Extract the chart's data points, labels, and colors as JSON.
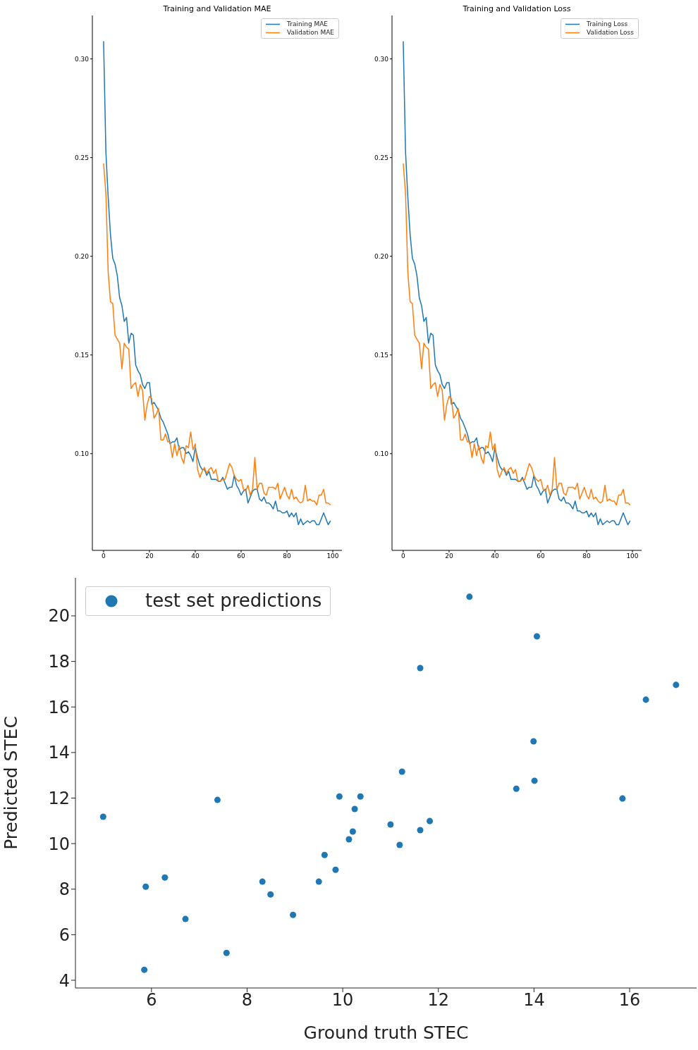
{
  "chart_data": [
    {
      "type": "line",
      "title": "Training and Validation MAE",
      "legend": "top right",
      "marker": "none",
      "line_style": "solid",
      "x": [
        0,
        1,
        2,
        3,
        4,
        5,
        6,
        7,
        8,
        9,
        10,
        11,
        12,
        13,
        14,
        15,
        16,
        17,
        18,
        19,
        20,
        21,
        22,
        23,
        24,
        25,
        26,
        27,
        28,
        29,
        30,
        31,
        32,
        33,
        34,
        35,
        36,
        37,
        38,
        39,
        40,
        41,
        42,
        43,
        44,
        45,
        46,
        47,
        48,
        49,
        50,
        51,
        52,
        53,
        54,
        55,
        56,
        57,
        58,
        59,
        60,
        61,
        62,
        63,
        64,
        65,
        66,
        67,
        68,
        69,
        70,
        71,
        72,
        73,
        74,
        75,
        76,
        77,
        78,
        79,
        80,
        81,
        82,
        83,
        84,
        85,
        86,
        87,
        88,
        89,
        90,
        91,
        92,
        93,
        94,
        95,
        96,
        97,
        98,
        99
      ],
      "xlim": [
        -4.9,
        104
      ],
      "xticks": [
        0,
        20,
        40,
        60,
        80,
        100
      ],
      "ylim": [
        0.051,
        0.322
      ],
      "yticks": [
        {
          "value": 0.1,
          "label": "0.10"
        },
        {
          "value": 0.15,
          "label": "0.15"
        },
        {
          "value": 0.2,
          "label": "0.20"
        },
        {
          "value": 0.25,
          "label": "0.25"
        },
        {
          "value": 0.3,
          "label": "0.30"
        }
      ],
      "series": [
        {
          "name": "Training MAE",
          "color": "#1f77b4",
          "values": [
            0.309,
            0.253,
            0.23,
            0.211,
            0.199,
            0.196,
            0.19,
            0.179,
            0.175,
            0.167,
            0.169,
            0.156,
            0.161,
            0.16,
            0.145,
            0.142,
            0.14,
            0.135,
            0.133,
            0.136,
            0.136,
            0.125,
            0.126,
            0.124,
            0.122,
            0.118,
            0.116,
            0.113,
            0.11,
            0.105,
            0.106,
            0.106,
            0.108,
            0.102,
            0.103,
            0.103,
            0.1,
            0.101,
            0.099,
            0.096,
            0.103,
            0.098,
            0.094,
            0.092,
            0.092,
            0.089,
            0.091,
            0.087,
            0.087,
            0.087,
            0.086,
            0.086,
            0.088,
            0.085,
            0.082,
            0.083,
            0.083,
            0.089,
            0.084,
            0.082,
            0.079,
            0.081,
            0.082,
            0.075,
            0.078,
            0.081,
            0.082,
            0.082,
            0.077,
            0.076,
            0.078,
            0.075,
            0.075,
            0.074,
            0.072,
            0.076,
            0.071,
            0.071,
            0.07,
            0.07,
            0.071,
            0.068,
            0.07,
            0.068,
            0.07,
            0.064,
            0.067,
            0.064,
            0.065,
            0.066,
            0.065,
            0.066,
            0.066,
            0.064,
            0.064,
            0.067,
            0.07,
            0.067,
            0.064,
            0.066
          ]
        },
        {
          "name": "Validation MAE",
          "color": "#ff7f0e",
          "values": [
            0.247,
            0.232,
            0.192,
            0.177,
            0.176,
            0.16,
            0.158,
            0.156,
            0.143,
            0.156,
            0.154,
            0.153,
            0.133,
            0.135,
            0.136,
            0.129,
            0.135,
            0.132,
            0.117,
            0.125,
            0.129,
            0.128,
            0.118,
            0.12,
            0.123,
            0.107,
            0.107,
            0.11,
            0.106,
            0.106,
            0.098,
            0.105,
            0.099,
            0.104,
            0.098,
            0.095,
            0.104,
            0.103,
            0.111,
            0.102,
            0.105,
            0.092,
            0.088,
            0.091,
            0.093,
            0.09,
            0.092,
            0.093,
            0.09,
            0.092,
            0.086,
            0.086,
            0.087,
            0.087,
            0.091,
            0.095,
            0.093,
            0.089,
            0.087,
            0.086,
            0.087,
            0.082,
            0.081,
            0.084,
            0.079,
            0.082,
            0.098,
            0.082,
            0.085,
            0.085,
            0.08,
            0.079,
            0.083,
            0.083,
            0.083,
            0.082,
            0.085,
            0.077,
            0.08,
            0.083,
            0.079,
            0.077,
            0.082,
            0.077,
            0.078,
            0.076,
            0.075,
            0.076,
            0.084,
            0.076,
            0.077,
            0.076,
            0.076,
            0.074,
            0.079,
            0.079,
            0.082,
            0.075,
            0.075,
            0.074
          ]
        }
      ]
    },
    {
      "type": "line",
      "title": "Training and Validation Loss",
      "legend": "top right",
      "marker": "none",
      "line_style": "solid",
      "x": [
        0,
        1,
        2,
        3,
        4,
        5,
        6,
        7,
        8,
        9,
        10,
        11,
        12,
        13,
        14,
        15,
        16,
        17,
        18,
        19,
        20,
        21,
        22,
        23,
        24,
        25,
        26,
        27,
        28,
        29,
        30,
        31,
        32,
        33,
        34,
        35,
        36,
        37,
        38,
        39,
        40,
        41,
        42,
        43,
        44,
        45,
        46,
        47,
        48,
        49,
        50,
        51,
        52,
        53,
        54,
        55,
        56,
        57,
        58,
        59,
        60,
        61,
        62,
        63,
        64,
        65,
        66,
        67,
        68,
        69,
        70,
        71,
        72,
        73,
        74,
        75,
        76,
        77,
        78,
        79,
        80,
        81,
        82,
        83,
        84,
        85,
        86,
        87,
        88,
        89,
        90,
        91,
        92,
        93,
        94,
        95,
        96,
        97,
        98,
        99
      ],
      "xlim": [
        -4.9,
        104
      ],
      "xticks": [
        0,
        20,
        40,
        60,
        80,
        100
      ],
      "ylim": [
        0.051,
        0.322
      ],
      "yticks": [
        {
          "value": 0.1,
          "label": "0.10"
        },
        {
          "value": 0.15,
          "label": "0.15"
        },
        {
          "value": 0.2,
          "label": "0.20"
        },
        {
          "value": 0.25,
          "label": "0.25"
        },
        {
          "value": 0.3,
          "label": "0.30"
        }
      ],
      "series": [
        {
          "name": "Training Loss",
          "color": "#1f77b4",
          "values": [
            0.309,
            0.253,
            0.23,
            0.211,
            0.199,
            0.196,
            0.19,
            0.179,
            0.175,
            0.167,
            0.169,
            0.156,
            0.161,
            0.16,
            0.145,
            0.142,
            0.14,
            0.135,
            0.133,
            0.136,
            0.136,
            0.125,
            0.126,
            0.124,
            0.122,
            0.118,
            0.116,
            0.113,
            0.11,
            0.105,
            0.106,
            0.106,
            0.108,
            0.102,
            0.103,
            0.103,
            0.1,
            0.101,
            0.099,
            0.096,
            0.103,
            0.098,
            0.094,
            0.092,
            0.092,
            0.089,
            0.091,
            0.087,
            0.087,
            0.087,
            0.086,
            0.086,
            0.088,
            0.085,
            0.082,
            0.083,
            0.083,
            0.089,
            0.084,
            0.082,
            0.079,
            0.081,
            0.082,
            0.075,
            0.078,
            0.081,
            0.082,
            0.082,
            0.077,
            0.076,
            0.078,
            0.075,
            0.075,
            0.074,
            0.072,
            0.076,
            0.071,
            0.071,
            0.07,
            0.07,
            0.071,
            0.068,
            0.07,
            0.068,
            0.07,
            0.064,
            0.067,
            0.064,
            0.065,
            0.066,
            0.065,
            0.066,
            0.066,
            0.064,
            0.064,
            0.067,
            0.07,
            0.067,
            0.064,
            0.066
          ]
        },
        {
          "name": "Validation Loss",
          "color": "#ff7f0e",
          "values": [
            0.247,
            0.232,
            0.192,
            0.177,
            0.176,
            0.16,
            0.158,
            0.156,
            0.143,
            0.156,
            0.154,
            0.153,
            0.133,
            0.135,
            0.136,
            0.129,
            0.135,
            0.132,
            0.117,
            0.125,
            0.129,
            0.128,
            0.118,
            0.12,
            0.123,
            0.107,
            0.107,
            0.11,
            0.106,
            0.106,
            0.098,
            0.105,
            0.099,
            0.104,
            0.098,
            0.095,
            0.104,
            0.103,
            0.111,
            0.102,
            0.105,
            0.092,
            0.088,
            0.091,
            0.093,
            0.09,
            0.092,
            0.093,
            0.09,
            0.092,
            0.086,
            0.086,
            0.087,
            0.087,
            0.091,
            0.095,
            0.093,
            0.089,
            0.087,
            0.086,
            0.087,
            0.082,
            0.081,
            0.084,
            0.079,
            0.082,
            0.098,
            0.082,
            0.085,
            0.085,
            0.08,
            0.079,
            0.083,
            0.083,
            0.083,
            0.082,
            0.085,
            0.077,
            0.08,
            0.083,
            0.079,
            0.077,
            0.082,
            0.077,
            0.078,
            0.076,
            0.075,
            0.076,
            0.084,
            0.076,
            0.077,
            0.076,
            0.076,
            0.074,
            0.079,
            0.079,
            0.082,
            0.075,
            0.075,
            0.074
          ]
        }
      ]
    },
    {
      "type": "scatter",
      "xlabel": "Ground truth STEC",
      "ylabel": "Predicted STEC",
      "legend": "top left",
      "marker": "circle",
      "xlim": [
        4.41,
        17.4
      ],
      "xticks": [
        6,
        8,
        10,
        12,
        14,
        16
      ],
      "ylim": [
        3.66,
        21.67
      ],
      "yticks": [
        4,
        6,
        8,
        10,
        12,
        14,
        16,
        18,
        20
      ],
      "series": [
        {
          "name": "test set predictions",
          "color": "#1f77b4",
          "x": [
            4.99,
            5.88,
            5.85,
            6.28,
            6.71,
            7.38,
            7.57,
            8.32,
            8.49,
            8.96,
            9.5,
            9.62,
            9.85,
            9.93,
            10.37,
            10.25,
            10.21,
            10.13,
            11.0,
            11.19,
            11.24,
            11.62,
            11.62,
            11.82,
            12.65,
            13.63,
            13.99,
            14.01,
            14.06,
            15.85,
            16.34,
            16.97
          ],
          "values": [
            11.18,
            8.11,
            4.46,
            8.51,
            6.69,
            11.92,
            5.2,
            8.33,
            7.77,
            6.87,
            8.33,
            9.5,
            8.85,
            12.07,
            12.07,
            11.52,
            10.53,
            10.19,
            10.84,
            9.94,
            13.16,
            17.71,
            10.59,
            10.99,
            20.84,
            12.41,
            14.49,
            12.76,
            19.1,
            11.98,
            16.32,
            16.97
          ]
        }
      ]
    }
  ]
}
